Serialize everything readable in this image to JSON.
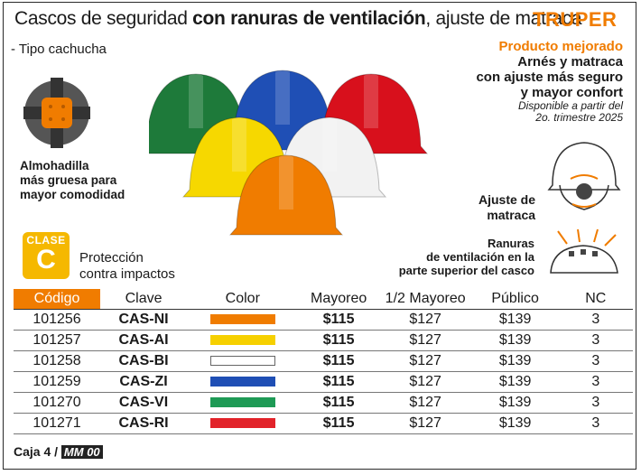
{
  "title": {
    "prefix": "Cascos de seguridad ",
    "bold": "con ranuras de ventilación",
    "suffix": ", ajuste de matraca"
  },
  "brand": "TRUPER",
  "subtype": "- Tipo cachucha",
  "improved": {
    "highlight": "Producto mejorado",
    "lines": [
      "Arnés y matraca",
      "con ajuste más seguro",
      "y mayor confort"
    ],
    "availability": [
      "Disponible a partir del",
      "2o. trimestre 2025"
    ]
  },
  "pad_label": [
    "Almohadilla",
    "más gruesa para",
    "mayor comodidad"
  ],
  "class_badge": {
    "top": "CLASE",
    "letter": "C"
  },
  "protection": [
    "Protección",
    "contra impactos"
  ],
  "adjust_label": [
    "Ajuste de",
    "matraca"
  ],
  "vent_label": [
    "Ranuras",
    "de ventilación en la",
    "parte superior del casco"
  ],
  "table": {
    "headers": [
      "Código",
      "Clave",
      "Color",
      "Mayoreo",
      "1/2 Mayoreo",
      "Público",
      "NC"
    ],
    "rows": [
      {
        "code": "101256",
        "clave": "CAS-NI",
        "color": "#f07c00",
        "mayoreo": "$115",
        "medio": "$127",
        "publico": "$139",
        "nc": "3"
      },
      {
        "code": "101257",
        "clave": "CAS-AI",
        "color": "#f6d000",
        "mayoreo": "$115",
        "medio": "$127",
        "publico": "$139",
        "nc": "3"
      },
      {
        "code": "101258",
        "clave": "CAS-BI",
        "color": "#ffffff",
        "mayoreo": "$115",
        "medio": "$127",
        "publico": "$139",
        "nc": "3"
      },
      {
        "code": "101259",
        "clave": "CAS-ZI",
        "color": "#1f4fb5",
        "mayoreo": "$115",
        "medio": "$127",
        "publico": "$139",
        "nc": "3"
      },
      {
        "code": "101270",
        "clave": "CAS-VI",
        "color": "#1e9a55",
        "mayoreo": "$115",
        "medio": "$127",
        "publico": "$139",
        "nc": "3"
      },
      {
        "code": "101271",
        "clave": "CAS-RI",
        "color": "#e2232a",
        "mayoreo": "$115",
        "medio": "$127",
        "publico": "$139",
        "nc": "3"
      }
    ]
  },
  "footer": {
    "label": "Caja 4 / ",
    "code": "MM 00"
  },
  "helmet_colors": [
    "#1e7a3a",
    "#1f4fb5",
    "#d8101c",
    "#f6d800",
    "#f2f2f2",
    "#f07c00"
  ]
}
